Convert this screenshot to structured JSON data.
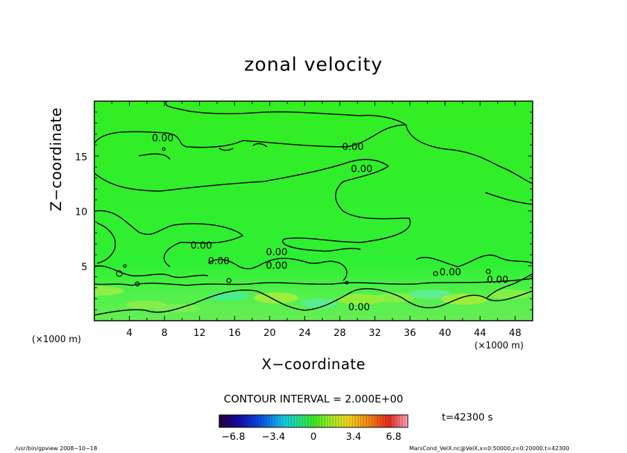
{
  "chart_data": {
    "type": "heatmap",
    "title": "zonal velocity",
    "xlabel": "X−coordinate",
    "ylabel": "Z−coordinate",
    "x_unit_left": "(×1000 m)",
    "x_unit_right": "(×1000 m)",
    "xlim": [
      0,
      50
    ],
    "ylim": [
      0,
      20
    ],
    "x_ticks": [
      4,
      8,
      12,
      16,
      20,
      24,
      28,
      32,
      36,
      40,
      44,
      48
    ],
    "y_ticks": [
      5,
      10,
      15
    ],
    "contour_labels": [
      {
        "text": "0.00",
        "x": 7.8,
        "y": 16.6
      },
      {
        "text": "0.00",
        "x": 29.5,
        "y": 15.8
      },
      {
        "text": "0.00",
        "x": 30.5,
        "y": 13.8
      },
      {
        "text": "0.00",
        "x": 12.2,
        "y": 6.8
      },
      {
        "text": "0.00",
        "x": 14.2,
        "y": 5.4
      },
      {
        "text": "0.00",
        "x": 20.8,
        "y": 6.2
      },
      {
        "text": "0.00",
        "x": 20.8,
        "y": 5.0
      },
      {
        "text": "0.00",
        "x": 40.6,
        "y": 4.4
      },
      {
        "text": "0.00",
        "x": 46.0,
        "y": 3.7
      },
      {
        "text": "0.00",
        "x": 30.2,
        "y": 1.2
      }
    ],
    "contour_interval": "CONTOUR INTERVAL = 2.000E+00",
    "colorbar": {
      "range": [
        -8.0,
        8.0
      ],
      "tick_labels": [
        "−6.8",
        "−3.4",
        "0",
        "3.4",
        "6.8"
      ],
      "tick_values": [
        -6.8,
        -3.4,
        0,
        3.4,
        6.8
      ]
    },
    "time_label": "t=42300 s",
    "footer_left": "/usr/bin/gpview   2008−10−18",
    "footer_right": "MarsCond_VelX.nc@VelX,x=0:50000,z=0:20000,t=42300"
  }
}
